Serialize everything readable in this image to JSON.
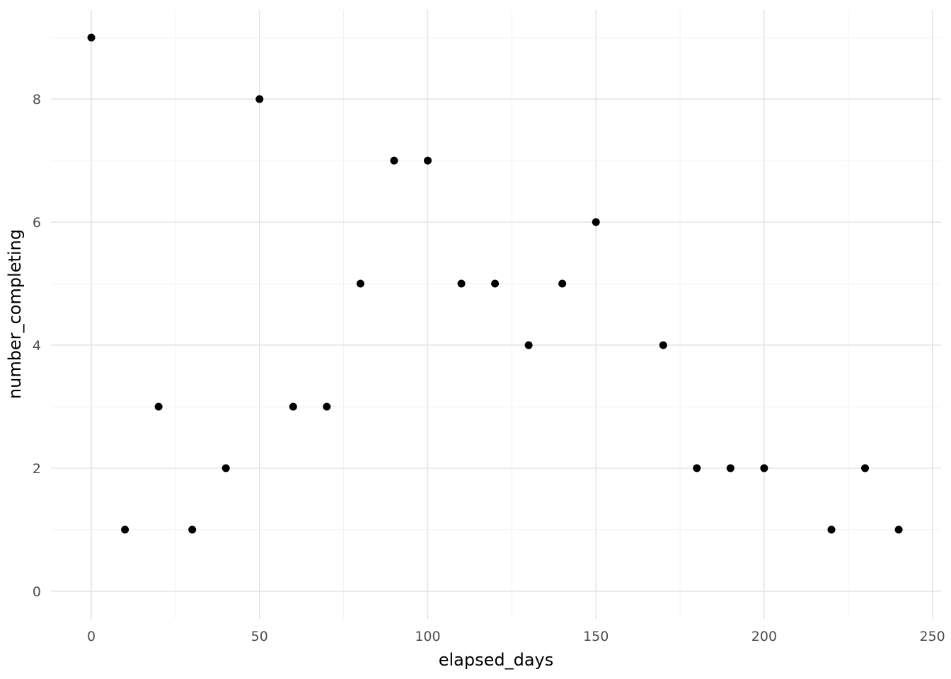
{
  "chart_data": {
    "type": "scatter",
    "title": "",
    "xlabel": "elapsed_days",
    "ylabel": "number_completing",
    "x": [
      0,
      10,
      20,
      30,
      40,
      50,
      60,
      70,
      80,
      90,
      100,
      110,
      120,
      130,
      140,
      150,
      170,
      180,
      190,
      200,
      220,
      230,
      240
    ],
    "y": [
      9,
      1,
      3,
      1,
      2,
      8,
      3,
      3,
      5,
      7,
      7,
      5,
      5,
      4,
      5,
      6,
      4,
      2,
      2,
      2,
      1,
      2,
      1
    ],
    "xlim": [
      -12,
      252.6
    ],
    "ylim": [
      -0.45,
      9.45
    ],
    "x_ticks": {
      "values": [
        0,
        50,
        100,
        150,
        200,
        250
      ],
      "labels": [
        "0",
        "50",
        "100",
        "150",
        "200",
        "250"
      ]
    },
    "y_ticks": {
      "values": [
        0,
        2,
        4,
        6,
        8
      ],
      "labels": [
        "0",
        "2",
        "4",
        "6",
        "8"
      ]
    },
    "x_minor_ticks": [
      25,
      75,
      125,
      175,
      225
    ],
    "y_minor_ticks": [
      1,
      3,
      5,
      7,
      9
    ],
    "grid": "on",
    "legend": "none",
    "style": {
      "point_color": "#000000",
      "point_radius_px": 5.5,
      "grid_major_color": "#e2e2e2",
      "grid_minor_color": "#ededed",
      "grid_major_width": 1.4,
      "grid_minor_width": 0.7,
      "tick_label_color": "#4d4d4d",
      "axis_title_color": "#000000",
      "background_color": "#ffffff"
    }
  }
}
